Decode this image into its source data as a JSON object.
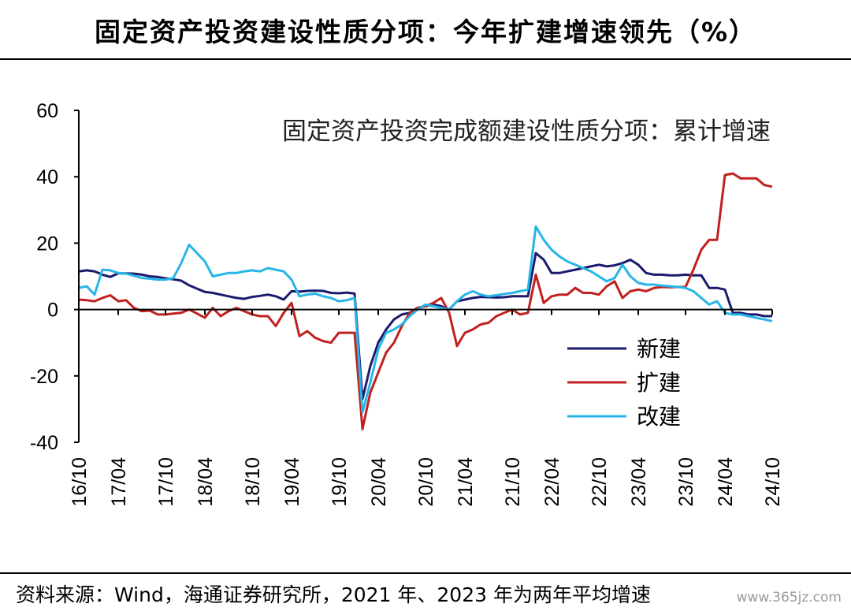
{
  "header": {
    "title": "固定资产投资建设性质分项：今年扩建增速领先（%）"
  },
  "footer": {
    "source": "资料来源：Wind，海通证券研究所，2021 年、2023 年为两年平均增速",
    "watermark": "www.365jz.com"
  },
  "chart_data": {
    "type": "line",
    "title": "固定资产投资完成额建设性质分项：累计增速",
    "xlabel": "",
    "ylabel": "",
    "ylim": [
      -40,
      60
    ],
    "yticks": [
      "60",
      "40",
      "20",
      "0",
      "-20",
      "-40"
    ],
    "grid": false,
    "legend_position": "center-right",
    "x_tick_labels": [
      "16/10",
      "17/04",
      "17/10",
      "18/04",
      "18/10",
      "19/04",
      "19/10",
      "20/04",
      "20/10",
      "21/04",
      "21/10",
      "22/04",
      "22/10",
      "23/04",
      "23/10",
      "24/04",
      "24/10"
    ],
    "x": [
      "16/10",
      "16/11",
      "16/12",
      "17/02",
      "17/03",
      "17/04",
      "17/05",
      "17/06",
      "17/07",
      "17/08",
      "17/09",
      "17/10",
      "17/11",
      "17/12",
      "18/02",
      "18/03",
      "18/04",
      "18/05",
      "18/06",
      "18/07",
      "18/08",
      "18/09",
      "18/10",
      "18/11",
      "18/12",
      "19/02",
      "19/03",
      "19/04",
      "19/05",
      "19/06",
      "19/07",
      "19/08",
      "19/09",
      "19/10",
      "19/11",
      "19/12",
      "20/02",
      "20/03",
      "20/04",
      "20/05",
      "20/06",
      "20/07",
      "20/08",
      "20/09",
      "20/10",
      "20/11",
      "20/12",
      "21/02",
      "21/03",
      "21/04",
      "21/05",
      "21/06",
      "21/07",
      "21/08",
      "21/09",
      "21/10",
      "21/11",
      "21/12",
      "22/02",
      "22/03",
      "22/04",
      "22/05",
      "22/06",
      "22/07",
      "22/08",
      "22/09",
      "22/10",
      "22/11",
      "22/12",
      "23/02",
      "23/03",
      "23/04",
      "23/05",
      "23/06",
      "23/07",
      "23/08",
      "23/09",
      "23/10",
      "23/11",
      "23/12",
      "24/02",
      "24/03",
      "24/04",
      "24/05",
      "24/06",
      "24/07",
      "24/08",
      "24/09",
      "24/10"
    ],
    "series": [
      {
        "name": "新建",
        "color": "#1a1a6e",
        "values": [
          11.5,
          11.8,
          11.5,
          10.5,
          9.8,
          10.9,
          10.9,
          10.8,
          10.5,
          10.0,
          9.8,
          9.4,
          9.1,
          8.7,
          7.3,
          6.3,
          5.3,
          5.0,
          4.5,
          4.0,
          3.5,
          3.2,
          3.8,
          4.1,
          4.5,
          4.0,
          3.0,
          5.5,
          5.4,
          5.6,
          5.7,
          5.6,
          5.0,
          4.9,
          5.1,
          4.8,
          -27.0,
          -17.0,
          -10.0,
          -6.0,
          -3.0,
          -1.5,
          -1.0,
          0.5,
          1.0,
          1.5,
          1.0,
          0.0,
          2.5,
          3.0,
          3.5,
          3.8,
          3.7,
          3.6,
          3.7,
          4.0,
          4.0,
          4.0,
          17.0,
          15.0,
          11.0,
          11.0,
          11.5,
          12.0,
          12.5,
          13.0,
          13.5,
          13.0,
          13.3,
          14.0,
          15.0,
          13.5,
          11.0,
          10.5,
          10.5,
          10.3,
          10.3,
          10.5,
          10.3,
          10.3,
          6.5,
          6.5,
          6.0,
          -1.0,
          -1.0,
          -1.5,
          -1.5,
          -2.0,
          -2.0
        ]
      },
      {
        "name": "扩建",
        "color": "#c0201f",
        "values": [
          3.0,
          2.8,
          2.5,
          3.5,
          4.3,
          2.5,
          2.8,
          0.5,
          -0.5,
          -0.3,
          -1.5,
          -1.5,
          -1.2,
          -1.0,
          0.0,
          -1.2,
          -2.5,
          0.5,
          -2.0,
          -0.5,
          0.5,
          -0.5,
          -1.5,
          -2.0,
          -2.0,
          -5.0,
          -1.0,
          2.0,
          -8.0,
          -6.5,
          -8.5,
          -9.5,
          -10.0,
          -7.0,
          -7.0,
          -7.0,
          -36.0,
          -25.0,
          -19.0,
          -13.0,
          -10.0,
          -5.0,
          -1.0,
          0.5,
          1.0,
          2.0,
          3.5,
          -1.0,
          -11.0,
          -7.0,
          -6.0,
          -4.5,
          -4.0,
          -2.0,
          -1.0,
          0.0,
          -1.5,
          -1.0,
          10.5,
          2.0,
          4.0,
          4.5,
          4.5,
          6.5,
          5.0,
          5.0,
          4.5,
          7.0,
          8.5,
          3.5,
          5.5,
          6.0,
          5.5,
          6.5,
          6.8,
          6.7,
          6.8,
          6.8,
          12.0,
          18.0,
          21.0,
          21.0,
          40.5,
          41.0,
          39.5,
          39.5,
          39.5,
          37.5,
          37.0
        ]
      },
      {
        "name": "改建",
        "color": "#27b5e8",
        "values": [
          6.5,
          7.0,
          4.5,
          12.0,
          11.8,
          11.0,
          10.8,
          10.2,
          9.5,
          9.3,
          9.0,
          9.0,
          9.5,
          14.0,
          19.5,
          17.0,
          14.5,
          10.0,
          10.5,
          11.0,
          11.0,
          11.5,
          11.8,
          11.5,
          12.5,
          12.0,
          11.5,
          9.0,
          4.0,
          4.5,
          4.8,
          4.0,
          3.5,
          2.5,
          2.8,
          3.5,
          -31.0,
          -22.0,
          -12.0,
          -7.0,
          -6.0,
          -4.5,
          -2.0,
          0.0,
          1.5,
          1.0,
          0.5,
          0.0,
          2.5,
          4.5,
          5.5,
          4.5,
          4.0,
          4.3,
          4.7,
          5.0,
          5.5,
          6.0,
          25.0,
          21.0,
          18.0,
          16.0,
          14.5,
          13.5,
          12.5,
          11.5,
          10.0,
          8.5,
          9.5,
          13.5,
          10.0,
          8.0,
          7.5,
          7.5,
          7.2,
          7.0,
          6.8,
          6.5,
          5.5,
          3.5,
          1.5,
          2.5,
          -1.0,
          -1.5,
          -1.5,
          -2.0,
          -2.5,
          -3.0,
          -3.5
        ]
      }
    ]
  }
}
